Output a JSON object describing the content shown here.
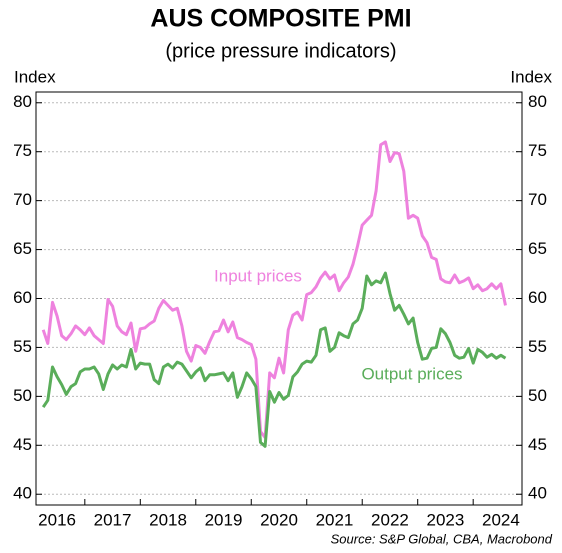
{
  "chart_data": {
    "type": "line",
    "title": "AUS COMPOSITE PMI",
    "subtitle": "(price pressure indicators)",
    "y_label": "Index",
    "y2_label": "Index",
    "source": "Source: S&P Global, CBA, Macrobond",
    "annotations": [
      "Input prices",
      "Output prices"
    ],
    "x": [
      2016.25,
      2016.333,
      2016.417,
      2016.5,
      2016.583,
      2016.667,
      2016.75,
      2016.833,
      2016.917,
      2017,
      2017.083,
      2017.167,
      2017.25,
      2017.333,
      2017.417,
      2017.5,
      2017.583,
      2017.667,
      2017.75,
      2017.833,
      2017.917,
      2018,
      2018.083,
      2018.167,
      2018.25,
      2018.333,
      2018.417,
      2018.5,
      2018.583,
      2018.667,
      2018.75,
      2018.833,
      2018.917,
      2019,
      2019.083,
      2019.167,
      2019.25,
      2019.333,
      2019.417,
      2019.5,
      2019.583,
      2019.667,
      2019.75,
      2019.833,
      2019.917,
      2020,
      2020.083,
      2020.167,
      2020.25,
      2020.333,
      2020.417,
      2020.5,
      2020.583,
      2020.667,
      2020.75,
      2020.833,
      2020.917,
      2021,
      2021.083,
      2021.167,
      2021.25,
      2021.333,
      2021.417,
      2021.5,
      2021.583,
      2021.667,
      2021.75,
      2021.833,
      2021.917,
      2022,
      2022.083,
      2022.167,
      2022.25,
      2022.333,
      2022.417,
      2022.5,
      2022.583,
      2022.667,
      2022.75,
      2022.833,
      2022.917,
      2023,
      2023.083,
      2023.167,
      2023.25,
      2023.333,
      2023.417,
      2023.5,
      2023.583,
      2023.667,
      2023.75,
      2023.833,
      2023.917,
      2024,
      2024.083,
      2024.167,
      2024.25,
      2024.333,
      2024.417,
      2024.5,
      2024.583
    ],
    "series": [
      {
        "name": "Input prices",
        "color": "#ee82de",
        "values": [
          56.8,
          55.4,
          59.6,
          58.2,
          56.2,
          55.8,
          56.4,
          57.2,
          56.8,
          56.3,
          57.0,
          56.2,
          55.8,
          55.4,
          59.9,
          59.2,
          57.2,
          56.6,
          56.3,
          57.5,
          54.6,
          56.9,
          57.0,
          57.4,
          57.7,
          59.0,
          59.8,
          59.3,
          58.8,
          59.0,
          57.2,
          54.6,
          53.6,
          55.2,
          55.0,
          54.4,
          55.6,
          56.6,
          56.7,
          57.8,
          56.6,
          57.6,
          56.0,
          55.8,
          55.5,
          55.3,
          53.8,
          46.4,
          45.8,
          52.4,
          51.9,
          53.9,
          52.4,
          56.8,
          58.3,
          58.6,
          57.8,
          60.4,
          60.6,
          61.2,
          62.1,
          62.7,
          62.0,
          62.4,
          60.8,
          61.6,
          62.2,
          63.5,
          65.4,
          67.5,
          68.0,
          68.5,
          71.0,
          75.7,
          76.0,
          74.0,
          74.9,
          74.8,
          73.0,
          68.2,
          68.5,
          68.2,
          66.4,
          65.7,
          64.2,
          64.0,
          62.0,
          61.7,
          61.6,
          62.4,
          61.6,
          61.8,
          62.1,
          61.0,
          61.4,
          60.8,
          61.0,
          61.5,
          61.0,
          61.5,
          59.3
        ]
      },
      {
        "name": "Output prices",
        "color": "#5aad5a",
        "values": [
          48.9,
          49.6,
          53.0,
          52.0,
          51.2,
          50.2,
          51.0,
          51.3,
          52.5,
          52.8,
          52.8,
          53.0,
          52.3,
          50.7,
          52.3,
          53.2,
          52.8,
          53.2,
          53.0,
          54.8,
          52.8,
          53.4,
          53.3,
          53.3,
          51.7,
          51.3,
          53.0,
          53.3,
          52.9,
          53.5,
          53.3,
          52.6,
          51.9,
          52.5,
          52.9,
          51.6,
          52.2,
          52.2,
          52.3,
          52.4,
          51.6,
          52.4,
          49.9,
          51.0,
          52.4,
          51.8,
          51.0,
          45.3,
          44.9,
          50.5,
          49.4,
          50.4,
          49.7,
          50.1,
          52.0,
          52.5,
          53.3,
          53.6,
          53.5,
          54.2,
          56.8,
          57.0,
          54.6,
          55.0,
          56.5,
          56.2,
          56.0,
          57.4,
          57.8,
          59.0,
          62.3,
          61.4,
          61.8,
          61.6,
          62.6,
          60.5,
          58.8,
          59.3,
          58.4,
          57.4,
          58.0,
          55.5,
          53.8,
          53.9,
          54.9,
          55.0,
          56.9,
          56.4,
          55.5,
          54.2,
          53.9,
          54.0,
          54.9,
          53.4,
          54.8,
          54.5,
          54.0,
          54.3,
          53.9,
          54.2,
          53.9
        ]
      }
    ],
    "xlim": [
      2016.12,
      2024.88
    ],
    "xticks": [
      {
        "value": 2016.5,
        "label": "2016"
      },
      {
        "value": 2017.5,
        "label": "2017"
      },
      {
        "value": 2018.5,
        "label": "2018"
      },
      {
        "value": 2019.5,
        "label": "2019"
      },
      {
        "value": 2020.5,
        "label": "2020"
      },
      {
        "value": 2021.5,
        "label": "2021"
      },
      {
        "value": 2022.5,
        "label": "2022"
      },
      {
        "value": 2023.5,
        "label": "2023"
      },
      {
        "value": 2024.5,
        "label": "2024"
      }
    ],
    "ylim": [
      38.9,
      81.1
    ],
    "yticks": [
      40,
      45,
      50,
      55,
      60,
      65,
      70,
      75,
      80
    ],
    "y2lim": [
      38.9,
      81.1
    ],
    "y2ticks": [
      40,
      45,
      50,
      55,
      60,
      65,
      70,
      75,
      80
    ],
    "grid": true
  }
}
